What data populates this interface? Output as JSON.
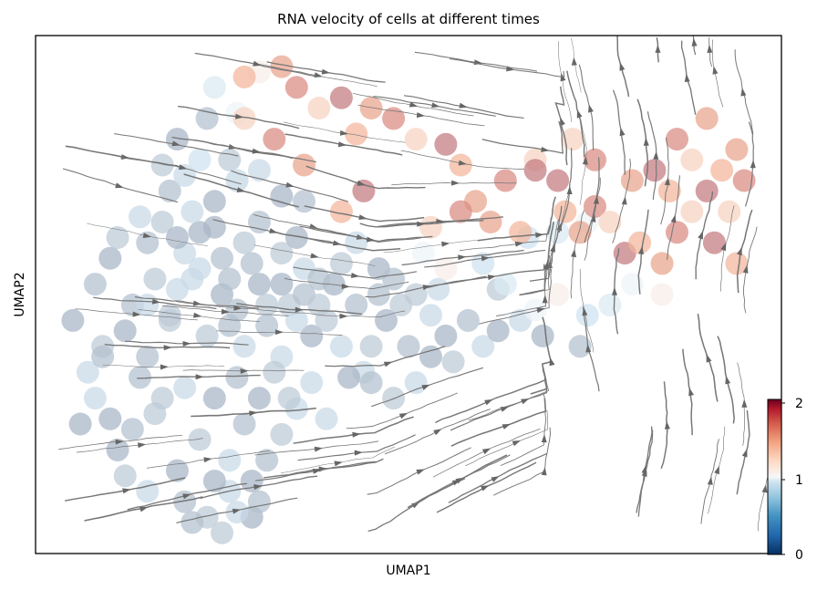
{
  "chart_data": {
    "type": "scatter",
    "title": "RNA velocity of cells at different times",
    "xlabel": "UMAP1",
    "ylabel": "UMAP2",
    "xticks": "none",
    "yticks": "none",
    "grid": false,
    "overlay": "streamlines (velocity field)",
    "colorbar": {
      "position": "bottom-right",
      "colormap": "RdBu_r",
      "min": 0,
      "max": 2,
      "ticks": [
        "0",
        "1",
        "2"
      ]
    },
    "xlim": [
      0,
      100
    ],
    "ylim": [
      0,
      100
    ],
    "cluster_light_blue": [
      [
        5,
        45
      ],
      [
        8,
        52
      ],
      [
        9,
        40
      ],
      [
        7,
        35
      ],
      [
        10,
        57
      ],
      [
        13,
        48
      ],
      [
        16,
        53
      ],
      [
        19,
        51
      ],
      [
        12,
        43
      ],
      [
        15,
        38
      ],
      [
        18,
        46
      ],
      [
        22,
        55
      ],
      [
        25,
        50
      ],
      [
        27,
        47
      ],
      [
        23,
        42
      ],
      [
        28,
        40
      ],
      [
        30,
        52
      ],
      [
        31,
        44
      ],
      [
        34,
        48
      ],
      [
        33,
        38
      ],
      [
        37,
        42
      ],
      [
        36,
        50
      ],
      [
        39,
        45
      ],
      [
        41,
        40
      ],
      [
        40,
        52
      ],
      [
        43,
        48
      ],
      [
        45,
        40
      ],
      [
        44,
        35
      ],
      [
        47,
        45
      ],
      [
        50,
        40
      ],
      [
        49,
        48
      ],
      [
        53,
        46
      ],
      [
        55,
        42
      ],
      [
        58,
        45
      ],
      [
        56,
        37
      ],
      [
        60,
        40
      ],
      [
        62,
        43
      ],
      [
        15,
        60
      ],
      [
        17,
        64
      ],
      [
        20,
        58
      ],
      [
        22,
        62
      ],
      [
        25,
        57
      ],
      [
        28,
        60
      ],
      [
        21,
        66
      ],
      [
        24,
        68
      ],
      [
        18,
        70
      ],
      [
        17,
        75
      ],
      [
        20,
        73
      ],
      [
        27,
        72
      ],
      [
        30,
        64
      ],
      [
        33,
        58
      ],
      [
        36,
        55
      ],
      [
        35,
        61
      ],
      [
        38,
        53
      ],
      [
        41,
        56
      ],
      [
        43,
        60
      ],
      [
        46,
        55
      ],
      [
        48,
        53
      ],
      [
        51,
        50
      ],
      [
        54,
        51
      ],
      [
        11,
        20
      ],
      [
        13,
        24
      ],
      [
        16,
        27
      ],
      [
        20,
        32
      ],
      [
        24,
        30
      ],
      [
        28,
        25
      ],
      [
        22,
        22
      ],
      [
        26,
        18
      ],
      [
        29,
        14
      ],
      [
        31,
        18
      ],
      [
        33,
        23
      ],
      [
        35,
        28
      ],
      [
        30,
        30
      ],
      [
        27,
        34
      ],
      [
        32,
        35
      ],
      [
        39,
        26
      ],
      [
        42,
        34
      ],
      [
        45,
        33
      ],
      [
        12,
        15
      ],
      [
        15,
        12
      ],
      [
        19,
        16
      ],
      [
        20,
        10
      ],
      [
        23,
        7
      ],
      [
        26,
        12
      ],
      [
        29,
        7
      ],
      [
        21,
        6
      ],
      [
        25,
        4
      ],
      [
        27,
        8
      ],
      [
        24,
        14
      ],
      [
        30,
        10
      ],
      [
        34,
        30
      ],
      [
        37,
        33
      ],
      [
        10,
        26
      ],
      [
        14,
        34
      ],
      [
        17,
        30
      ],
      [
        8,
        30
      ],
      [
        6,
        25
      ],
      [
        9,
        38
      ],
      [
        31,
        48
      ],
      [
        35,
        45
      ],
      [
        33,
        52
      ],
      [
        26,
        44
      ],
      [
        38,
        48
      ],
      [
        21,
        53
      ],
      [
        24,
        63
      ],
      [
        29,
        56
      ],
      [
        11,
        61
      ],
      [
        14,
        65
      ],
      [
        19,
        61
      ],
      [
        26,
        53
      ],
      [
        18,
        45
      ],
      [
        15,
        48
      ],
      [
        53,
        38
      ],
      [
        46,
        50
      ],
      [
        62,
        51
      ],
      [
        65,
        45
      ],
      [
        68,
        42
      ],
      [
        73,
        40
      ],
      [
        48,
        30
      ],
      [
        51,
        33
      ],
      [
        19,
        80
      ],
      [
        23,
        84
      ],
      [
        26,
        76
      ],
      [
        30,
        74
      ],
      [
        33,
        69
      ],
      [
        36,
        68
      ]
    ],
    "cluster_pale": [
      [
        24,
        90
      ],
      [
        27,
        85
      ],
      [
        30,
        93
      ],
      [
        22,
        76
      ],
      [
        27,
        72
      ],
      [
        52,
        58
      ],
      [
        55,
        55
      ],
      [
        60,
        56
      ],
      [
        63,
        52
      ],
      [
        67,
        47
      ],
      [
        70,
        50
      ],
      [
        74,
        46
      ],
      [
        77,
        48
      ],
      [
        80,
        52
      ],
      [
        84,
        50
      ],
      [
        66,
        61
      ],
      [
        70,
        62
      ],
      [
        74,
        64
      ]
    ],
    "cluster_red": [
      [
        28,
        92
      ],
      [
        33,
        94
      ],
      [
        35,
        90
      ],
      [
        38,
        86
      ],
      [
        41,
        88
      ],
      [
        43,
        81
      ],
      [
        45,
        86
      ],
      [
        48,
        84
      ],
      [
        51,
        80
      ],
      [
        55,
        79
      ],
      [
        57,
        75
      ],
      [
        59,
        68
      ],
      [
        63,
        72
      ],
      [
        67,
        76
      ],
      [
        70,
        72
      ],
      [
        71,
        66
      ],
      [
        73,
        62
      ],
      [
        75,
        67
      ],
      [
        77,
        64
      ],
      [
        79,
        58
      ],
      [
        81,
        60
      ],
      [
        84,
        56
      ],
      [
        86,
        62
      ],
      [
        88,
        66
      ],
      [
        90,
        70
      ],
      [
        92,
        74
      ],
      [
        94,
        78
      ],
      [
        95,
        72
      ],
      [
        93,
        66
      ],
      [
        91,
        60
      ],
      [
        94,
        56
      ],
      [
        90,
        84
      ],
      [
        86,
        80
      ],
      [
        88,
        76
      ],
      [
        83,
        74
      ],
      [
        85,
        70
      ],
      [
        80,
        72
      ],
      [
        75,
        76
      ],
      [
        72,
        80
      ],
      [
        67,
        74
      ],
      [
        65,
        62
      ],
      [
        61,
        64
      ],
      [
        57,
        66
      ],
      [
        53,
        63
      ],
      [
        44,
        70
      ],
      [
        41,
        66
      ],
      [
        36,
        75
      ],
      [
        32,
        80
      ],
      [
        28,
        84
      ]
    ]
  }
}
